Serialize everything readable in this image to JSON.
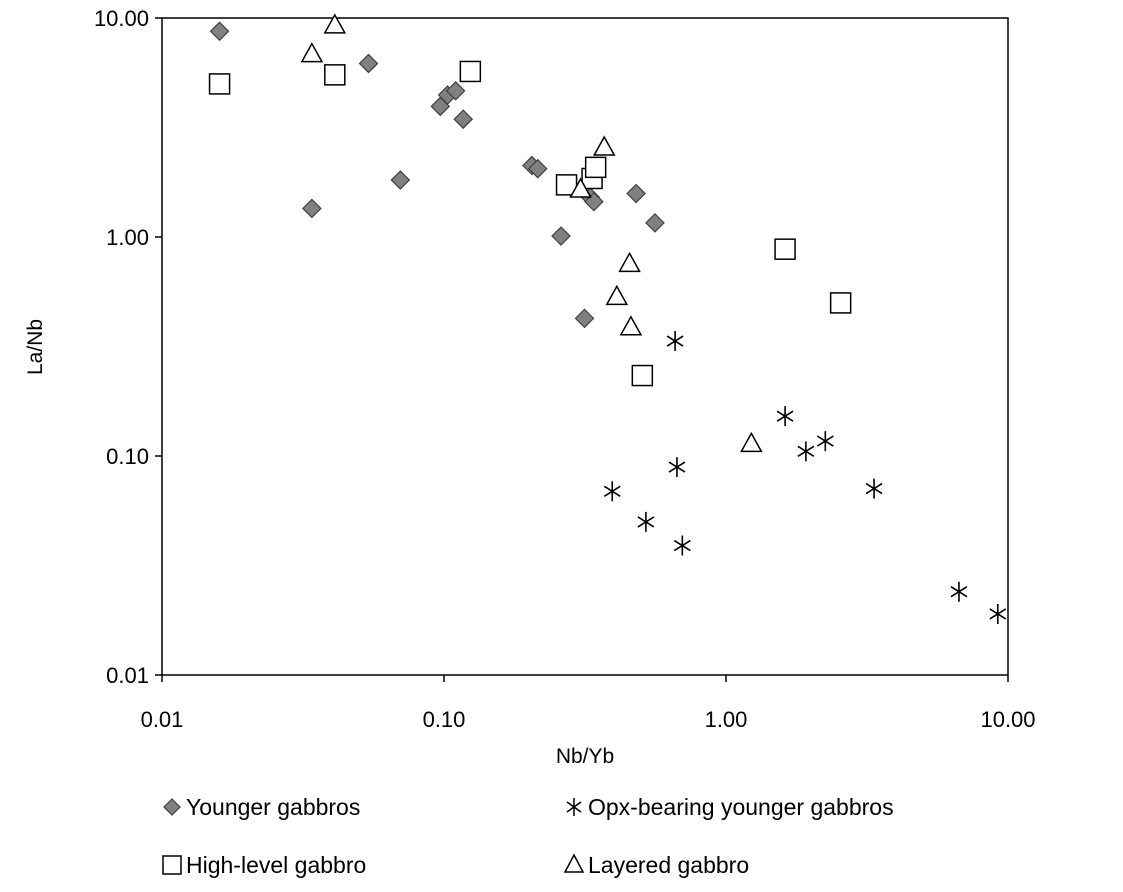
{
  "chart_data": {
    "type": "scatter",
    "title": "",
    "xlabel": "Nb/Yb",
    "ylabel": "La/Nb",
    "xscale": "log",
    "yscale": "log",
    "xlim": [
      0.01,
      10
    ],
    "ylim": [
      0.01,
      10
    ],
    "xticks": [
      "0.01",
      "0.10",
      "1.00",
      "10.00"
    ],
    "yticks": [
      "0.01",
      "0.10",
      "1.00",
      "10.00"
    ],
    "grid": false,
    "legend_position": "bottom",
    "series": [
      {
        "name": "Younger gabbros",
        "marker": "diamond",
        "color": "#808080",
        "points": [
          [
            0.016,
            8.7
          ],
          [
            0.034,
            1.35
          ],
          [
            0.054,
            6.2
          ],
          [
            0.07,
            1.82
          ],
          [
            0.097,
            3.95
          ],
          [
            0.103,
            4.45
          ],
          [
            0.11,
            4.65
          ],
          [
            0.117,
            3.45
          ],
          [
            0.205,
            2.12
          ],
          [
            0.215,
            2.05
          ],
          [
            0.26,
            1.01
          ],
          [
            0.315,
            0.425
          ],
          [
            0.33,
            1.52
          ],
          [
            0.34,
            1.45
          ],
          [
            0.48,
            1.58
          ],
          [
            0.56,
            1.16
          ]
        ]
      },
      {
        "name": "Opx-bearing younger gabbros",
        "marker": "asterisk",
        "color": "#000000",
        "points": [
          [
            0.395,
            0.069
          ],
          [
            0.52,
            0.05
          ],
          [
            0.66,
            0.335
          ],
          [
            0.67,
            0.089
          ],
          [
            0.7,
            0.039
          ],
          [
            1.62,
            0.152
          ],
          [
            1.92,
            0.105
          ],
          [
            2.25,
            0.117
          ],
          [
            3.35,
            0.071
          ],
          [
            6.7,
            0.024
          ],
          [
            9.2,
            0.019
          ]
        ]
      },
      {
        "name": "High-level gabbro",
        "marker": "square",
        "color": "#000000",
        "points": [
          [
            0.016,
            5.0
          ],
          [
            0.041,
            5.5
          ],
          [
            0.124,
            5.7
          ],
          [
            0.272,
            1.73
          ],
          [
            0.335,
            1.85
          ],
          [
            0.345,
            2.08
          ],
          [
            0.505,
            0.233
          ],
          [
            1.62,
            0.88
          ],
          [
            2.55,
            0.5
          ]
        ]
      },
      {
        "name": "Layered gabbro",
        "marker": "triangle",
        "color": "#000000",
        "points": [
          [
            0.034,
            6.8
          ],
          [
            0.041,
            9.2
          ],
          [
            0.305,
            1.64
          ],
          [
            0.37,
            2.55
          ],
          [
            0.41,
            0.53
          ],
          [
            0.455,
            0.75
          ],
          [
            0.46,
            0.385
          ],
          [
            1.23,
            0.113
          ]
        ]
      }
    ]
  }
}
